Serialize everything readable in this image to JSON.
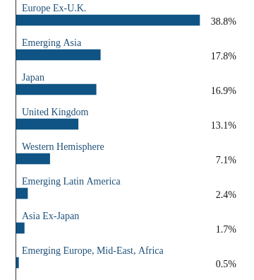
{
  "chart_data": {
    "type": "bar",
    "orientation": "horizontal",
    "categories": [
      "Europe Ex-U.K.",
      "Emerging Asia",
      "Japan",
      "United Kingdom",
      "Western Hemisphere",
      "Emerging Latin America",
      "Asia Ex-Japan",
      "Emerging Europe, Mid-East, Africa"
    ],
    "values": [
      38.8,
      17.8,
      16.9,
      13.1,
      7.1,
      2.4,
      1.7,
      0.5
    ],
    "value_labels": [
      "38.8%",
      "17.8%",
      "16.9%",
      "13.1%",
      "7.1%",
      "2.4%",
      "1.7%",
      "0.5%"
    ],
    "color": "#0f5484",
    "xlim": [
      0,
      40
    ],
    "grid": false,
    "data_labels": true,
    "tick_labels": "y"
  }
}
